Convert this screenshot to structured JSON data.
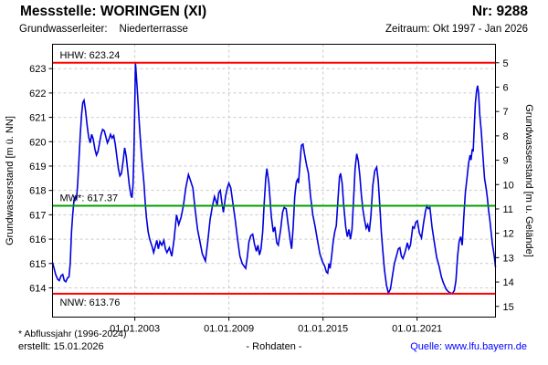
{
  "header": {
    "title": "Messstelle: WORINGEN (XI)",
    "number": "Nr: 9288",
    "aquifer_label": "Grundwasserleiter:",
    "aquifer_value": "Niederterrasse",
    "period": "Zeitraum: Okt 1997 - Jan 2026"
  },
  "footer": {
    "note": "* Abflussjahr (1996-2024)",
    "created": "erstellt:  15.01.2026",
    "center": "- Rohdaten -",
    "source": "Quelle: www.lfu.bayern.de",
    "source_color": "#0000ff"
  },
  "colors": {
    "series_blue": "#0000dd",
    "extreme_red": "#ff0000",
    "mean_green": "#00a000",
    "grid_gray": "#c9c9c9",
    "frame_black": "#000000"
  },
  "chart_data": {
    "type": "line",
    "title": "",
    "grid": true,
    "legend": false,
    "x_axis": {
      "range": [
        1997.75,
        2026.0
      ],
      "ticks": [
        {
          "value": 2003,
          "label": "01.01.2003"
        },
        {
          "value": 2009,
          "label": "01.01.2009"
        },
        {
          "value": 2015,
          "label": "01.01.2015"
        },
        {
          "value": 2021,
          "label": "01.01.2021"
        }
      ]
    },
    "y_axis_left": {
      "label": "Grundwasserstand [m ü. NN]",
      "range": [
        612.8,
        624.0
      ],
      "ticks": [
        614,
        615,
        616,
        617,
        618,
        619,
        620,
        621,
        622,
        623
      ]
    },
    "y_axis_right": {
      "label": "Grundwasserstand [m u. Gelände]",
      "ground_level": 628.24,
      "ticks": [
        5,
        6,
        7,
        8,
        9,
        10,
        11,
        12,
        13,
        14,
        15
      ]
    },
    "reference_lines": [
      {
        "name": "HHW",
        "label": "HHW: 623.24",
        "value": 623.24,
        "color": "#ff0000",
        "label_position": "above"
      },
      {
        "name": "MW",
        "label": "MW*: 617.37",
        "value": 617.37,
        "color": "#00a000",
        "label_position": "above"
      },
      {
        "name": "NNW",
        "label": "NNW: 613.76",
        "value": 613.76,
        "color": "#ff0000",
        "label_position": "below"
      }
    ],
    "series": [
      {
        "name": "Grundwasserstand (Rohdaten)",
        "color": "#0000dd",
        "points": [
          [
            1997.75,
            615.05
          ],
          [
            1997.85,
            614.8
          ],
          [
            1997.95,
            614.55
          ],
          [
            1998.08,
            614.35
          ],
          [
            1998.18,
            614.3
          ],
          [
            1998.3,
            614.5
          ],
          [
            1998.4,
            614.55
          ],
          [
            1998.5,
            614.3
          ],
          [
            1998.6,
            614.25
          ],
          [
            1998.7,
            614.4
          ],
          [
            1998.8,
            614.45
          ],
          [
            1998.88,
            615.0
          ],
          [
            1998.96,
            616.3
          ],
          [
            1999.04,
            617.0
          ],
          [
            1999.12,
            617.6
          ],
          [
            1999.2,
            617.75
          ],
          [
            1999.28,
            617.65
          ],
          [
            1999.36,
            618.3
          ],
          [
            1999.44,
            619.3
          ],
          [
            1999.52,
            620.3
          ],
          [
            1999.6,
            621.1
          ],
          [
            1999.68,
            621.6
          ],
          [
            1999.76,
            621.7
          ],
          [
            1999.85,
            621.3
          ],
          [
            1999.95,
            620.7
          ],
          [
            2000.05,
            620.2
          ],
          [
            2000.15,
            619.95
          ],
          [
            2000.25,
            620.3
          ],
          [
            2000.35,
            620.1
          ],
          [
            2000.45,
            619.7
          ],
          [
            2000.55,
            619.45
          ],
          [
            2000.65,
            619.6
          ],
          [
            2000.75,
            619.95
          ],
          [
            2000.85,
            620.3
          ],
          [
            2000.95,
            620.5
          ],
          [
            2001.05,
            620.45
          ],
          [
            2001.15,
            620.2
          ],
          [
            2001.25,
            619.95
          ],
          [
            2001.35,
            620.1
          ],
          [
            2001.45,
            620.3
          ],
          [
            2001.55,
            620.15
          ],
          [
            2001.65,
            620.25
          ],
          [
            2001.75,
            619.9
          ],
          [
            2001.85,
            619.4
          ],
          [
            2001.95,
            618.9
          ],
          [
            2002.05,
            618.6
          ],
          [
            2002.15,
            618.7
          ],
          [
            2002.25,
            619.2
          ],
          [
            2002.35,
            619.75
          ],
          [
            2002.45,
            619.4
          ],
          [
            2002.55,
            618.8
          ],
          [
            2002.65,
            618.2
          ],
          [
            2002.75,
            617.8
          ],
          [
            2002.82,
            617.7
          ],
          [
            2002.88,
            618.2
          ],
          [
            2002.94,
            619.5
          ],
          [
            2002.99,
            621.3
          ],
          [
            2003.04,
            623.24
          ],
          [
            2003.1,
            622.7
          ],
          [
            2003.18,
            621.9
          ],
          [
            2003.26,
            621.0
          ],
          [
            2003.34,
            620.2
          ],
          [
            2003.42,
            619.5
          ],
          [
            2003.5,
            618.9
          ],
          [
            2003.58,
            618.3
          ],
          [
            2003.66,
            617.5
          ],
          [
            2003.74,
            616.9
          ],
          [
            2003.85,
            616.3
          ],
          [
            2003.95,
            616.0
          ],
          [
            2004.1,
            615.7
          ],
          [
            2004.2,
            615.45
          ],
          [
            2004.3,
            615.7
          ],
          [
            2004.4,
            615.95
          ],
          [
            2004.5,
            615.6
          ],
          [
            2004.6,
            615.9
          ],
          [
            2004.72,
            615.75
          ],
          [
            2004.85,
            615.95
          ],
          [
            2004.95,
            615.6
          ],
          [
            2005.05,
            615.45
          ],
          [
            2005.2,
            615.65
          ],
          [
            2005.36,
            615.3
          ],
          [
            2005.5,
            616.0
          ],
          [
            2005.66,
            617.0
          ],
          [
            2005.8,
            616.6
          ],
          [
            2005.95,
            616.9
          ],
          [
            2006.1,
            617.4
          ],
          [
            2006.25,
            618.1
          ],
          [
            2006.42,
            618.65
          ],
          [
            2006.55,
            618.4
          ],
          [
            2006.7,
            618.1
          ],
          [
            2006.85,
            617.2
          ],
          [
            2007.0,
            616.4
          ],
          [
            2007.15,
            615.9
          ],
          [
            2007.3,
            615.4
          ],
          [
            2007.5,
            615.1
          ],
          [
            2007.65,
            615.9
          ],
          [
            2007.8,
            616.8
          ],
          [
            2007.93,
            617.3
          ],
          [
            2008.08,
            617.75
          ],
          [
            2008.16,
            617.6
          ],
          [
            2008.25,
            617.4
          ],
          [
            2008.35,
            617.9
          ],
          [
            2008.45,
            618.0
          ],
          [
            2008.55,
            617.5
          ],
          [
            2008.65,
            617.1
          ],
          [
            2008.78,
            617.75
          ],
          [
            2008.9,
            618.1
          ],
          [
            2009.0,
            618.3
          ],
          [
            2009.12,
            618.1
          ],
          [
            2009.25,
            617.5
          ],
          [
            2009.4,
            616.8
          ],
          [
            2009.55,
            616.0
          ],
          [
            2009.7,
            615.3
          ],
          [
            2009.85,
            615.0
          ],
          [
            2009.95,
            614.9
          ],
          [
            2010.07,
            614.8
          ],
          [
            2010.18,
            615.3
          ],
          [
            2010.28,
            615.9
          ],
          [
            2010.4,
            616.15
          ],
          [
            2010.52,
            616.2
          ],
          [
            2010.63,
            615.8
          ],
          [
            2010.75,
            615.5
          ],
          [
            2010.85,
            615.75
          ],
          [
            2010.95,
            615.35
          ],
          [
            2011.05,
            615.6
          ],
          [
            2011.15,
            616.3
          ],
          [
            2011.25,
            617.5
          ],
          [
            2011.35,
            618.5
          ],
          [
            2011.42,
            618.9
          ],
          [
            2011.55,
            618.3
          ],
          [
            2011.7,
            616.95
          ],
          [
            2011.83,
            616.3
          ],
          [
            2011.93,
            616.5
          ],
          [
            2012.05,
            615.85
          ],
          [
            2012.15,
            615.75
          ],
          [
            2012.3,
            616.4
          ],
          [
            2012.42,
            617.1
          ],
          [
            2012.52,
            617.3
          ],
          [
            2012.65,
            617.25
          ],
          [
            2012.78,
            616.6
          ],
          [
            2012.91,
            615.95
          ],
          [
            2013.0,
            615.6
          ],
          [
            2013.1,
            616.5
          ],
          [
            2013.2,
            617.75
          ],
          [
            2013.3,
            618.35
          ],
          [
            2013.38,
            618.45
          ],
          [
            2013.44,
            618.3
          ],
          [
            2013.52,
            619.0
          ],
          [
            2013.62,
            619.85
          ],
          [
            2013.72,
            619.9
          ],
          [
            2013.82,
            619.5
          ],
          [
            2013.95,
            619.05
          ],
          [
            2014.07,
            618.7
          ],
          [
            2014.2,
            617.8
          ],
          [
            2014.35,
            617.0
          ],
          [
            2014.5,
            616.5
          ],
          [
            2014.65,
            615.95
          ],
          [
            2014.8,
            615.4
          ],
          [
            2014.95,
            615.1
          ],
          [
            2015.1,
            614.9
          ],
          [
            2015.22,
            614.65
          ],
          [
            2015.3,
            614.6
          ],
          [
            2015.38,
            615.0
          ],
          [
            2015.45,
            614.8
          ],
          [
            2015.55,
            615.3
          ],
          [
            2015.65,
            615.9
          ],
          [
            2015.75,
            616.3
          ],
          [
            2015.85,
            616.55
          ],
          [
            2015.95,
            617.6
          ],
          [
            2016.05,
            618.55
          ],
          [
            2016.12,
            618.7
          ],
          [
            2016.22,
            618.3
          ],
          [
            2016.32,
            617.4
          ],
          [
            2016.45,
            616.5
          ],
          [
            2016.55,
            616.1
          ],
          [
            2016.65,
            616.4
          ],
          [
            2016.75,
            616.0
          ],
          [
            2016.85,
            616.4
          ],
          [
            2016.95,
            617.6
          ],
          [
            2017.05,
            618.9
          ],
          [
            2017.15,
            619.5
          ],
          [
            2017.25,
            619.2
          ],
          [
            2017.35,
            618.6
          ],
          [
            2017.45,
            617.8
          ],
          [
            2017.55,
            617.2
          ],
          [
            2017.65,
            616.8
          ],
          [
            2017.75,
            616.45
          ],
          [
            2017.85,
            616.6
          ],
          [
            2017.95,
            616.3
          ],
          [
            2018.05,
            616.9
          ],
          [
            2018.18,
            618.2
          ],
          [
            2018.3,
            618.8
          ],
          [
            2018.42,
            618.95
          ],
          [
            2018.52,
            618.4
          ],
          [
            2018.62,
            617.4
          ],
          [
            2018.72,
            616.3
          ],
          [
            2018.82,
            615.5
          ],
          [
            2018.92,
            614.75
          ],
          [
            2019.05,
            614.1
          ],
          [
            2019.17,
            613.78
          ],
          [
            2019.3,
            613.95
          ],
          [
            2019.42,
            614.45
          ],
          [
            2019.55,
            615.0
          ],
          [
            2019.68,
            615.3
          ],
          [
            2019.8,
            615.6
          ],
          [
            2019.9,
            615.65
          ],
          [
            2020.0,
            615.3
          ],
          [
            2020.1,
            615.2
          ],
          [
            2020.25,
            615.5
          ],
          [
            2020.38,
            615.85
          ],
          [
            2020.48,
            615.6
          ],
          [
            2020.58,
            615.75
          ],
          [
            2020.72,
            616.5
          ],
          [
            2020.82,
            616.45
          ],
          [
            2020.92,
            616.7
          ],
          [
            2021.02,
            616.75
          ],
          [
            2021.15,
            616.25
          ],
          [
            2021.28,
            616.05
          ],
          [
            2021.4,
            616.6
          ],
          [
            2021.52,
            617.1
          ],
          [
            2021.62,
            617.37
          ],
          [
            2021.72,
            617.25
          ],
          [
            2021.82,
            617.3
          ],
          [
            2021.95,
            616.5
          ],
          [
            2022.08,
            615.95
          ],
          [
            2022.25,
            615.25
          ],
          [
            2022.4,
            614.9
          ],
          [
            2022.55,
            614.45
          ],
          [
            2022.68,
            614.2
          ],
          [
            2022.85,
            613.95
          ],
          [
            2022.98,
            613.85
          ],
          [
            2023.1,
            613.8
          ],
          [
            2023.25,
            613.76
          ],
          [
            2023.38,
            613.9
          ],
          [
            2023.48,
            614.3
          ],
          [
            2023.58,
            615.3
          ],
          [
            2023.68,
            615.9
          ],
          [
            2023.78,
            616.1
          ],
          [
            2023.88,
            615.75
          ],
          [
            2023.98,
            616.9
          ],
          [
            2024.08,
            617.9
          ],
          [
            2024.18,
            618.5
          ],
          [
            2024.28,
            619.1
          ],
          [
            2024.38,
            619.45
          ],
          [
            2024.44,
            619.25
          ],
          [
            2024.52,
            619.7
          ],
          [
            2024.58,
            619.6
          ],
          [
            2024.66,
            620.8
          ],
          [
            2024.72,
            621.6
          ],
          [
            2024.8,
            622.1
          ],
          [
            2024.86,
            622.3
          ],
          [
            2024.92,
            622.0
          ],
          [
            2025.0,
            621.1
          ],
          [
            2025.1,
            620.4
          ],
          [
            2025.2,
            619.4
          ],
          [
            2025.3,
            618.5
          ],
          [
            2025.4,
            618.1
          ],
          [
            2025.48,
            617.7
          ],
          [
            2025.56,
            617.2
          ],
          [
            2025.64,
            616.8
          ],
          [
            2025.72,
            616.3
          ],
          [
            2025.8,
            615.8
          ],
          [
            2025.88,
            615.5
          ],
          [
            2025.96,
            615.1
          ],
          [
            2026.0,
            614.85
          ]
        ]
      }
    ]
  }
}
